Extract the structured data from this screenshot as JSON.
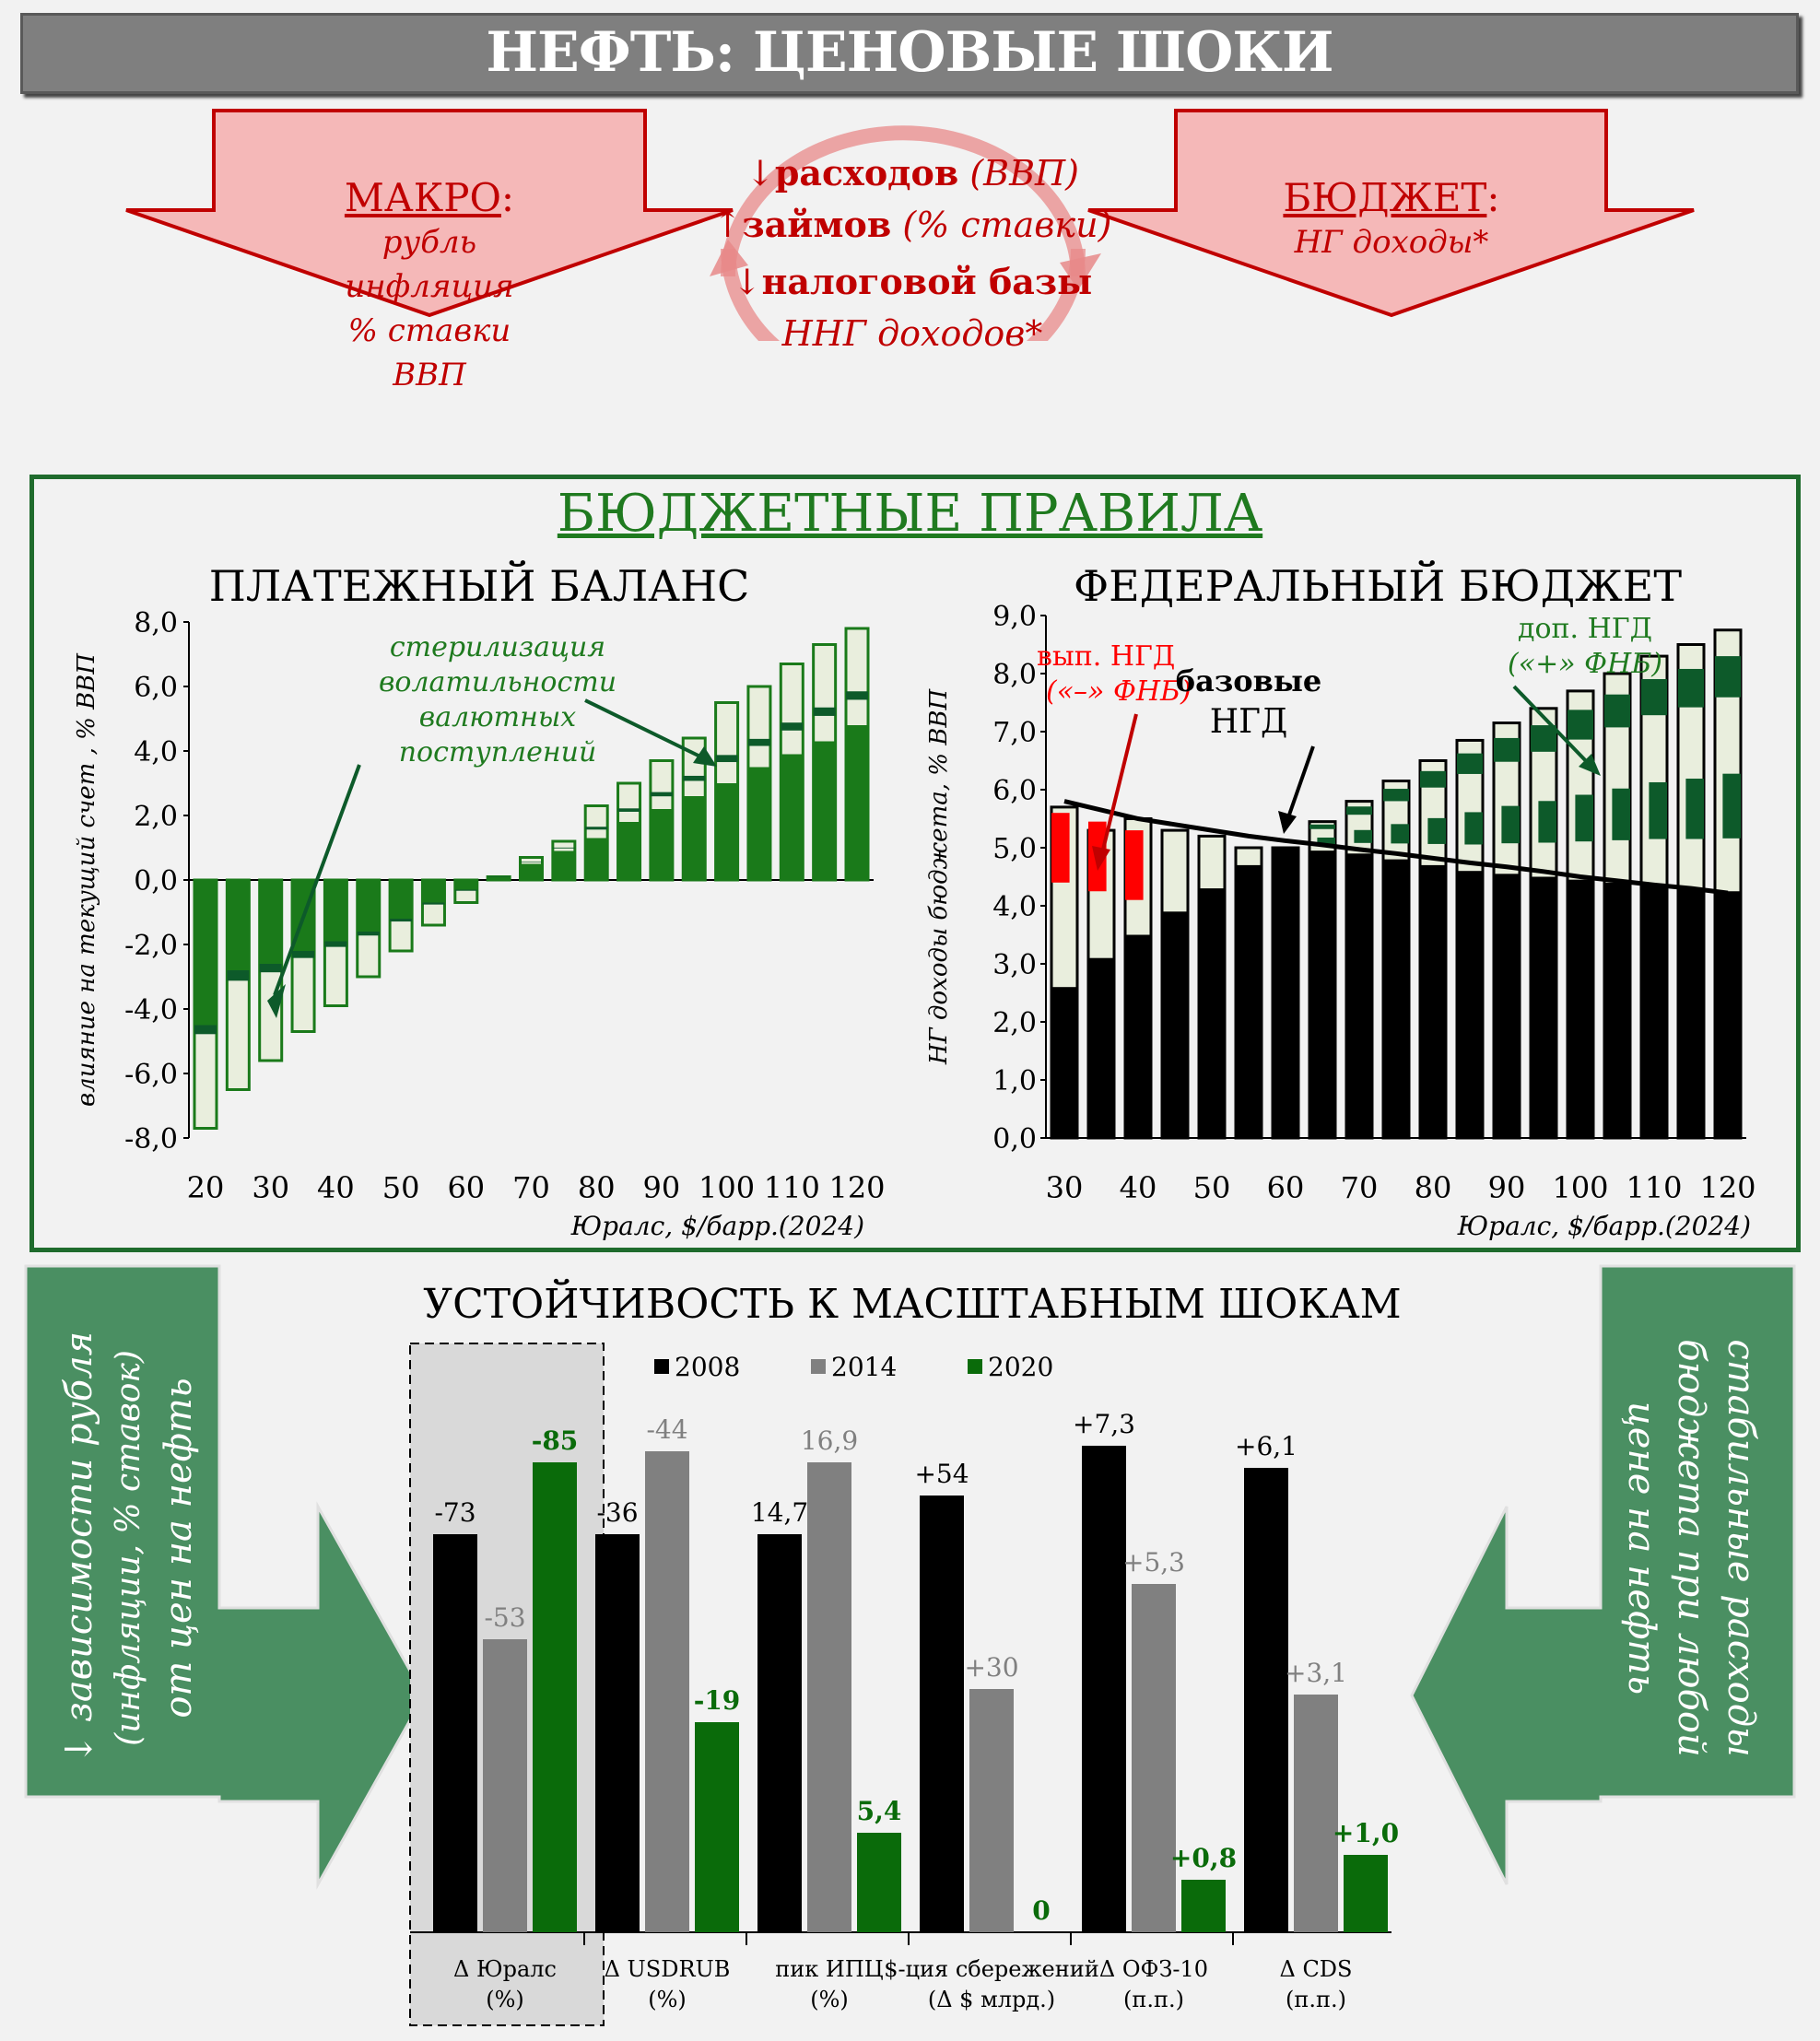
{
  "header": {
    "title": "НЕФТЬ: ЦЕНОВЫЕ ШОКИ"
  },
  "macro": {
    "title": "МАКРО",
    "colon": ":",
    "items": [
      "рубль",
      "инфляция",
      "% ставки",
      "ВВП"
    ]
  },
  "budget": {
    "title": "БЮДЖЕТ",
    "colon": ":",
    "item": "НГ доходы*"
  },
  "cycle": {
    "line1_arrow": "↓",
    "line1_bold": "расходов",
    "line1_it": "(ВВП)",
    "line2_arrow": "↑",
    "line2_bold": "займов",
    "line2_it": "(% ставки)",
    "line3_arrow": "↓",
    "line3_bold": "налоговой базы",
    "line4_it": "ННГ доходов*"
  },
  "rules": {
    "title": "БЮДЖЕТНЫЕ ПРАВИЛА"
  },
  "colors": {
    "dark_green": "#0d5a2a",
    "mid_green": "#1a7a1a",
    "light_fill": "#e9eedd",
    "red": "#c00000",
    "red_fill": "#f5b8b8",
    "grey_bar": "#808080",
    "black": "#000000",
    "green_arrow": "#4a8f62"
  },
  "chart_data": [
    {
      "type": "bar",
      "title": "ПЛАТЕЖНЫЙ БАЛАНС",
      "ylabel": "влияние на текущий счет , % ВВП",
      "xlabel": "Юралс, $/барр.(2024)",
      "ylim": [
        -8,
        8
      ],
      "yticks": [
        "8,0",
        "6,0",
        "4,0",
        "2,0",
        "0,0",
        "-2,0",
        "-4,0",
        "-6,0",
        "-8,0"
      ],
      "xticks": [
        "20",
        "30",
        "40",
        "50",
        "60",
        "70",
        "80",
        "90",
        "100",
        "110",
        "120"
      ],
      "x": [
        20,
        25,
        30,
        35,
        40,
        45,
        50,
        55,
        60,
        65,
        70,
        75,
        80,
        85,
        90,
        95,
        100,
        105,
        110,
        115,
        120
      ],
      "base": [
        -4.5,
        -2.8,
        -2.6,
        -2.2,
        -1.9,
        -1.6,
        -1.2,
        -0.7,
        -0.3,
        0.1,
        0.5,
        0.9,
        1.3,
        1.8,
        2.2,
        2.6,
        3.0,
        3.5,
        3.9,
        4.3,
        4.8
      ],
      "total": [
        -7.7,
        -6.5,
        -5.6,
        -4.7,
        -3.9,
        -3.0,
        -2.2,
        -1.4,
        -0.7,
        0.1,
        0.7,
        1.2,
        2.3,
        3.0,
        3.7,
        4.4,
        5.5,
        6.0,
        6.7,
        7.3,
        7.8
      ],
      "annotation": {
        "lines": [
          "стерилизация",
          "волатильности",
          "валютных",
          "поступлений"
        ]
      }
    },
    {
      "type": "bar",
      "title": "ФЕДЕРАЛЬНЫЙ БЮДЖЕТ",
      "ylabel": "НГ доходы бюджета, % ВВП",
      "xlabel": "Юралс, $/барр.(2024)",
      "ylim": [
        0,
        9
      ],
      "yticks": [
        "9,0",
        "8,0",
        "7,0",
        "6,0",
        "5,0",
        "4,0",
        "3,0",
        "2,0",
        "1,0",
        "0,0"
      ],
      "xticks": [
        "30",
        "40",
        "50",
        "60",
        "70",
        "80",
        "90",
        "100",
        "110",
        "120"
      ],
      "x": [
        30,
        35,
        40,
        45,
        50,
        55,
        60,
        65,
        70,
        75,
        80,
        85,
        90,
        95,
        100,
        105,
        110,
        115,
        120
      ],
      "black_base": [
        2.6,
        3.1,
        3.5,
        3.9,
        4.3,
        4.7,
        5.0,
        4.95,
        4.9,
        4.8,
        4.7,
        4.6,
        4.55,
        4.5,
        4.45,
        4.4,
        4.35,
        4.3,
        4.25
      ],
      "total": [
        5.7,
        5.3,
        5.5,
        5.3,
        5.2,
        5.0,
        5.0,
        5.45,
        5.8,
        6.15,
        6.5,
        6.85,
        7.15,
        7.4,
        7.7,
        8.0,
        8.3,
        8.5,
        8.75
      ],
      "base_line": [
        5.8,
        5.65,
        5.5,
        5.4,
        5.3,
        5.2,
        5.12,
        5.05,
        4.97,
        4.9,
        4.82,
        4.74,
        4.67,
        4.59,
        4.5,
        4.43,
        4.36,
        4.3,
        4.22
      ],
      "labels": {
        "red": [
          "вып. НГД",
          "(«–» ФНБ)"
        ],
        "black": [
          "базовые",
          "НГД"
        ],
        "green": [
          "доп. НГД",
          "(«+» ФНБ)"
        ]
      }
    },
    {
      "type": "bar",
      "title": "УСТОЙЧИВОСТЬ К МАСШТАБНЫМ ШОКАМ",
      "series": [
        {
          "name": "2008"
        },
        {
          "name": "2014"
        },
        {
          "name": "2020"
        }
      ],
      "categories": [
        {
          "line1": "Δ Юралс",
          "line2": "(%)",
          "labels": [
            "-73",
            "-53",
            "-85"
          ],
          "heights": [
            0.72,
            0.53,
            0.85
          ]
        },
        {
          "line1": "Δ USDRUB",
          "line2": "(%)",
          "labels": [
            "-36",
            "-44",
            "-19"
          ],
          "heights": [
            0.72,
            0.87,
            0.38
          ]
        },
        {
          "line1": "пик ИПЦ",
          "line2": "(%)",
          "labels": [
            "14,7",
            "16,9",
            "5,4"
          ],
          "heights": [
            0.72,
            0.85,
            0.18
          ]
        },
        {
          "line1": "$-ция сбережений",
          "line2": "(Δ $ млрд.)",
          "labels": [
            "+54",
            "+30",
            "0"
          ],
          "heights": [
            0.79,
            0.44,
            0.0
          ]
        },
        {
          "line1": "Δ ОФЗ-10",
          "line2": "(п.п.)",
          "labels": [
            "+7,3",
            "+5,3",
            "+0,8"
          ],
          "heights": [
            0.88,
            0.63,
            0.095
          ]
        },
        {
          "line1": "Δ CDS",
          "line2": "(п.п.)",
          "labels": [
            "+6,1",
            "+3,1",
            "+1,0"
          ],
          "heights": [
            0.84,
            0.43,
            0.14
          ]
        }
      ]
    }
  ],
  "side_left": {
    "arrow": "↓",
    "line1": "зависимости рубля",
    "line2": "(инфляции, % ставок)",
    "line3": "от цен на нефть"
  },
  "side_right": {
    "line1": "стабильные расходы",
    "line2": "бюджета при любой",
    "line3": "цене на нефть"
  }
}
